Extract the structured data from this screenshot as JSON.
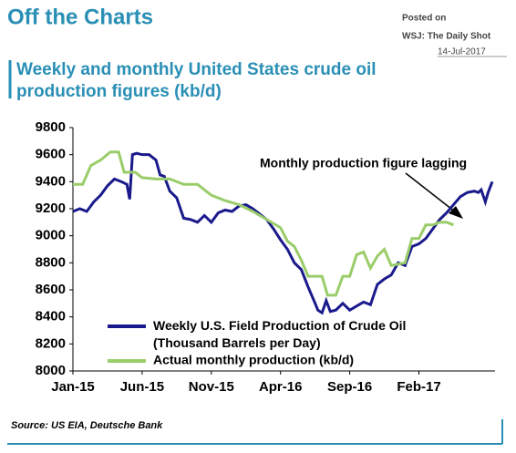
{
  "chart_data": {
    "type": "line",
    "header": "Off the Charts",
    "posted": [
      "Posted on",
      "WSJ: The Daily Shot",
      "14-Jul-2017"
    ],
    "title": [
      "Weekly and monthly United States crude oil",
      "production figures (kb/d)"
    ],
    "annotation": "Monthly production figure lagging",
    "source": "Source: US EIA, Deutsche Bank",
    "xlim": [
      0,
      30.5
    ],
    "xticks": [
      {
        "value": 0,
        "label": "Jan-15"
      },
      {
        "value": 5,
        "label": "Jun-15"
      },
      {
        "value": 10,
        "label": "Nov-15"
      },
      {
        "value": 15,
        "label": "Apr-16"
      },
      {
        "value": 20,
        "label": "Sep-16"
      },
      {
        "value": 25,
        "label": "Feb-17"
      }
    ],
    "ylim": [
      8000,
      9800
    ],
    "yticks": [
      8000,
      8200,
      8400,
      8600,
      8800,
      9000,
      9200,
      9400,
      9600,
      9800
    ],
    "series": [
      {
        "name": "Weekly U.S. Field Production of Crude Oil (Thousand Barrels per Day)",
        "color": "#1a1a8c",
        "x": [
          0,
          0.5,
          1,
          1.5,
          2,
          2.5,
          3,
          3.5,
          3.9,
          4.1,
          4.3,
          4.6,
          5,
          5.5,
          6,
          6.3,
          6.6,
          7,
          7.5,
          8,
          8.5,
          9,
          9.5,
          10,
          10.5,
          11,
          11.5,
          12,
          12.5,
          13,
          13.5,
          14,
          14.5,
          15,
          15.5,
          16,
          16.5,
          17,
          17.5,
          17.7,
          18,
          18.3,
          18.6,
          19,
          19.5,
          20,
          20.5,
          21,
          21.5,
          22,
          22.5,
          23,
          23.5,
          24,
          24.5,
          25,
          25.5,
          26,
          26.5,
          27,
          27.5,
          28,
          28.5,
          29,
          29.3,
          29.5,
          29.8,
          30,
          30.3
        ],
        "values": [
          9180,
          9200,
          9180,
          9250,
          9300,
          9370,
          9420,
          9400,
          9380,
          9270,
          9600,
          9610,
          9600,
          9600,
          9560,
          9450,
          9440,
          9330,
          9280,
          9130,
          9120,
          9100,
          9150,
          9100,
          9170,
          9190,
          9180,
          9220,
          9230,
          9200,
          9160,
          9120,
          9050,
          8970,
          8900,
          8800,
          8750,
          8620,
          8500,
          8450,
          8430,
          8520,
          8440,
          8450,
          8500,
          8450,
          8480,
          8510,
          8490,
          8640,
          8680,
          8710,
          8800,
          8780,
          8920,
          8940,
          8980,
          9050,
          9120,
          9170,
          9230,
          9290,
          9320,
          9330,
          9320,
          9340,
          9250,
          9320,
          9400
        ]
      },
      {
        "name": "Actual monthly production (kb/d)",
        "color": "#9acd6a",
        "x": [
          0,
          0.7,
          1.3,
          2,
          2.7,
          3.3,
          3.7,
          4.5,
          5,
          6,
          7,
          8,
          9,
          10,
          11,
          12,
          13,
          14,
          15,
          15.5,
          16,
          16.5,
          17,
          17.5,
          18,
          18.4,
          19,
          19.5,
          20,
          20.5,
          21,
          21.5,
          22,
          22.5,
          23,
          24,
          24.5,
          25,
          25.5,
          26,
          26.5,
          27,
          27.5
        ],
        "values": [
          9380,
          9380,
          9520,
          9560,
          9620,
          9620,
          9470,
          9470,
          9430,
          9420,
          9420,
          9380,
          9380,
          9300,
          9260,
          9230,
          9180,
          9120,
          9060,
          8960,
          8920,
          8820,
          8700,
          8700,
          8700,
          8560,
          8560,
          8700,
          8700,
          8860,
          8880,
          8760,
          8850,
          8900,
          8780,
          8800,
          8980,
          8980,
          9080,
          9080,
          9100,
          9100,
          9080
        ]
      }
    ]
  }
}
